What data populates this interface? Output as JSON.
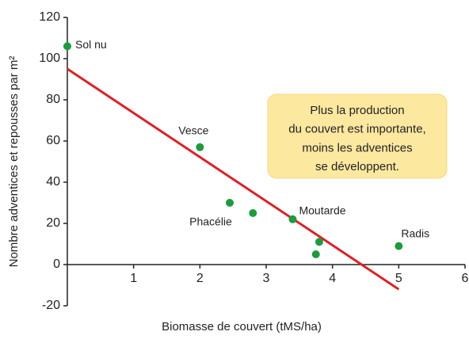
{
  "chart_data": {
    "type": "scatter",
    "xlabel": "Biomasse de couvert (tMS/ha)",
    "ylabel": "Nombre adventices et repousses par m²",
    "xlim": [
      0,
      6
    ],
    "ylim": [
      -20,
      120
    ],
    "xticks": [
      1,
      2,
      3,
      4,
      5,
      6
    ],
    "yticks": [
      -20,
      0,
      20,
      40,
      60,
      80,
      100,
      120
    ],
    "series": [
      {
        "type": "scatter",
        "color": "#1f9a3e",
        "x": [
          0,
          2,
          2.45,
          2.8,
          3.4,
          3.8,
          3.75,
          5
        ],
        "values": [
          106,
          57,
          30,
          25,
          22,
          11,
          5,
          9
        ],
        "point_labels": [
          "Sol nu",
          "Vesce",
          "Phacélie",
          null,
          "Moutarde",
          null,
          null,
          "Radis"
        ]
      },
      {
        "type": "line",
        "color": "#d8232a",
        "x": [
          0,
          5
        ],
        "values": [
          95,
          -12
        ]
      }
    ],
    "annotation": [
      "Plus la production",
      "du couvert est importante,",
      "moins les adventices",
      "se développent."
    ]
  }
}
